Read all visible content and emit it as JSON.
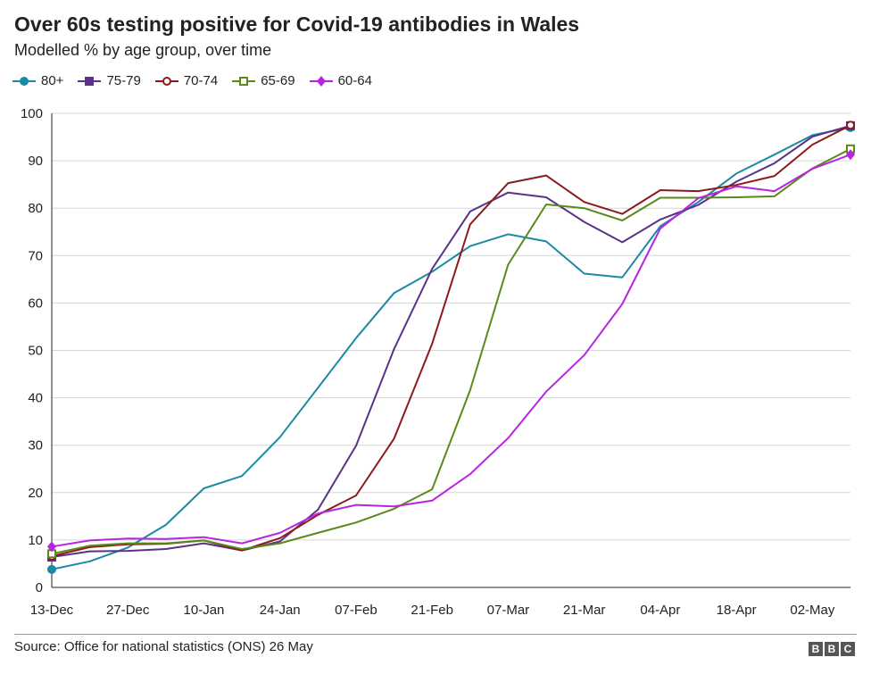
{
  "title": "Over 60s testing positive for Covid-19 antibodies in Wales",
  "subtitle": "Modelled % by age group, over time",
  "source": "Source: Office for national statistics (ONS) 26 May",
  "logo": [
    "B",
    "B",
    "C"
  ],
  "chart_data": {
    "type": "line",
    "x": [
      "13-Dec",
      "20-Dec",
      "27-Dec",
      "03-Jan",
      "10-Jan",
      "17-Jan",
      "24-Jan",
      "31-Jan",
      "07-Feb",
      "14-Feb",
      "21-Feb",
      "28-Feb",
      "07-Mar",
      "14-Mar",
      "21-Mar",
      "28-Mar",
      "04-Apr",
      "11-Apr",
      "18-Apr",
      "25-Apr",
      "02-May",
      "09-May"
    ],
    "x_tick_labels": [
      "13-Dec",
      "27-Dec",
      "10-Jan",
      "24-Jan",
      "07-Feb",
      "21-Feb",
      "07-Mar",
      "21-Mar",
      "04-Apr",
      "18-Apr",
      "02-May"
    ],
    "ylim": [
      0,
      100
    ],
    "y_ticks": [
      0,
      10,
      20,
      30,
      40,
      50,
      60,
      70,
      80,
      90,
      100
    ],
    "grid": true,
    "legend_position": "top-left",
    "series": [
      {
        "name": "80+",
        "color": "#1c8aa5",
        "marker": "circle-filled",
        "values": [
          3.8,
          5.5,
          8.4,
          13.2,
          20.9,
          23.5,
          31.7,
          42.1,
          52.6,
          62.1,
          66.6,
          72.0,
          74.5,
          73.0,
          66.2,
          65.4,
          76.2,
          81.3,
          87.3,
          91.3,
          95.4,
          97.0
        ]
      },
      {
        "name": "75-79",
        "color": "#5a3287",
        "marker": "square-filled",
        "values": [
          6.4,
          7.6,
          7.7,
          8.1,
          9.3,
          7.8,
          9.7,
          16.4,
          29.9,
          50.3,
          67.2,
          79.3,
          83.3,
          82.3,
          77.1,
          72.8,
          77.6,
          80.7,
          85.6,
          89.5,
          95.1,
          97.4
        ]
      },
      {
        "name": "70-74",
        "color": "#8c1a1a",
        "marker": "circle-open",
        "values": [
          6.6,
          8.5,
          9.1,
          9.2,
          9.9,
          7.8,
          10.4,
          15.3,
          19.4,
          31.4,
          51.4,
          76.6,
          85.3,
          86.9,
          81.3,
          78.8,
          83.8,
          83.6,
          84.9,
          86.8,
          93.4,
          97.5
        ]
      },
      {
        "name": "65-69",
        "color": "#5a8a1a",
        "marker": "square-open",
        "values": [
          7.1,
          8.8,
          9.3,
          9.3,
          9.9,
          8.1,
          9.3,
          11.5,
          13.7,
          16.6,
          20.7,
          41.6,
          68.1,
          80.8,
          80.0,
          77.4,
          82.2,
          82.2,
          82.3,
          82.5,
          88.4,
          92.5
        ]
      },
      {
        "name": "60-64",
        "color": "#b825e0",
        "marker": "diamond-filled",
        "values": [
          8.6,
          9.9,
          10.3,
          10.2,
          10.6,
          9.3,
          11.5,
          15.6,
          17.4,
          17.1,
          18.3,
          23.9,
          31.5,
          41.3,
          49.0,
          59.8,
          75.7,
          82.1,
          84.6,
          83.6,
          88.3,
          91.3
        ]
      }
    ]
  }
}
